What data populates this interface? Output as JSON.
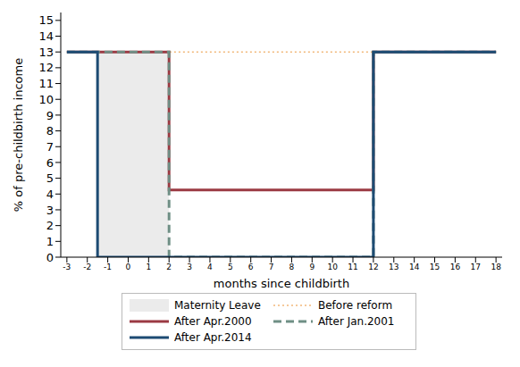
{
  "chart_data": {
    "type": "line",
    "x_label": "months since childbirth",
    "y_label": "% of pre-childbirth income",
    "xlim": [
      -3.3,
      18.3
    ],
    "xticks": [
      -3,
      -2,
      -1,
      0,
      1,
      2,
      3,
      4,
      5,
      6,
      7,
      8,
      9,
      10,
      11,
      12,
      13,
      14,
      15,
      16,
      17,
      18
    ],
    "ylim": [
      0,
      15.5
    ],
    "yticks": [
      0,
      1,
      2,
      3,
      4,
      5,
      6,
      7,
      8,
      9,
      10,
      11,
      12,
      13,
      14,
      15
    ],
    "grid": false,
    "legend": "bottom",
    "series": [
      {
        "name": "Maternity Leave",
        "type": "area",
        "color": "#ebebeb",
        "x": [
          -1.5,
          2
        ],
        "values": [
          13,
          13
        ]
      },
      {
        "name": "Before reform",
        "type": "line",
        "color": "#f2b879",
        "line_style": "dotted",
        "x": [
          -3,
          18
        ],
        "values": [
          13,
          13
        ]
      },
      {
        "name": "After Apr.2000",
        "type": "line",
        "color": "#9b3a43",
        "line_style": "solid",
        "x": [
          -3,
          2,
          2,
          12,
          12,
          18
        ],
        "values": [
          13,
          13,
          4.25,
          4.25,
          13,
          13
        ]
      },
      {
        "name": "After Jan.2001",
        "type": "line",
        "color": "#6f8f85",
        "line_style": "dashed",
        "x": [
          -3,
          2,
          2,
          12,
          12,
          18
        ],
        "values": [
          13,
          13,
          0,
          0,
          13,
          13
        ]
      },
      {
        "name": "After Apr.2014",
        "type": "line",
        "color": "#1d4b73",
        "line_style": "solid",
        "x": [
          -3,
          -1.5,
          -1.5,
          12,
          12,
          18
        ],
        "values": [
          13,
          13,
          0,
          0,
          13,
          13
        ]
      }
    ]
  }
}
